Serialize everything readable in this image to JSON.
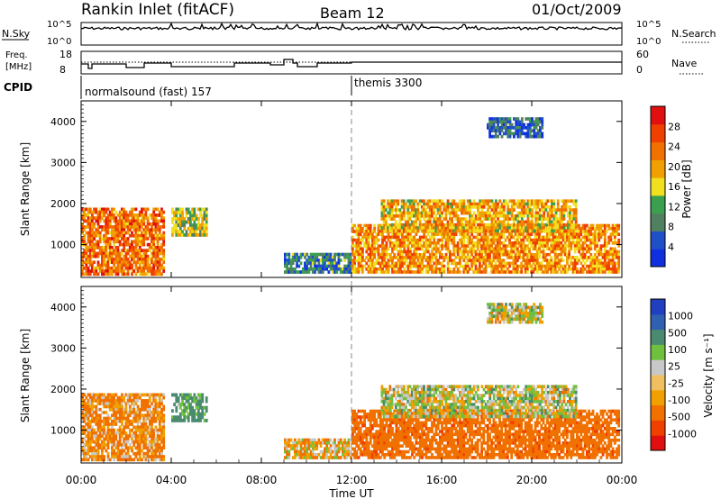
{
  "header": {
    "title": "Rankin Inlet (fitACF)",
    "beam": "Beam 12",
    "date": "01/Oct/2009"
  },
  "noise_panel": {
    "left_label": "N.Sky",
    "left_ticks": [
      "10^5",
      "10^0"
    ],
    "right_label": "N.Search",
    "right_ticks": [
      "10^5",
      "10^0"
    ]
  },
  "freq_panel": {
    "left_label_line1": "Freq.",
    "left_label_line2": "[MHz]",
    "left_ticks": [
      "18",
      "8"
    ],
    "right_label": "Nave",
    "right_ticks": [
      "60",
      "0"
    ]
  },
  "cpid": {
    "label": "CPID",
    "segments": [
      {
        "name": "normalsound (fast) 157",
        "start_hour": 0,
        "end_hour": 12
      },
      {
        "name": "themis 3300",
        "start_hour": 12,
        "end_hour": 24
      }
    ]
  },
  "colors": {
    "power_scale": [
      "#1030e0",
      "#2050c8",
      "#508060",
      "#3aa050",
      "#f0e020",
      "#f0a000",
      "#f07000",
      "#f04000",
      "#e01010"
    ],
    "velocity_scale": [
      "#e01010",
      "#f04000",
      "#f07000",
      "#f0a000",
      "#f0c060",
      "#c8c8c8",
      "#70c040",
      "#4a8a70",
      "#3060b0",
      "#2040c0"
    ],
    "dashed_marker": "#888888"
  },
  "chart_data": [
    {
      "type": "heatmap",
      "title": "",
      "xlabel": "",
      "ylabel": "Slant Range [km]",
      "xlim_hours": [
        0,
        24
      ],
      "ylim": [
        200,
        4500
      ],
      "yticks": [
        "1000",
        "2000",
        "3000",
        "4000"
      ],
      "colorbar": {
        "label": "Power [dB]",
        "ticks": [
          "4",
          "8",
          "12",
          "16",
          "20",
          "24",
          "28"
        ],
        "range": [
          0,
          30
        ]
      },
      "echo_regions": [
        {
          "t_start": 0.0,
          "t_end": 3.7,
          "r_min": 250,
          "r_max": 1900,
          "power_db": 22
        },
        {
          "t_start": 4.0,
          "t_end": 5.6,
          "r_min": 1200,
          "r_max": 1900,
          "power_db": 14
        },
        {
          "t_start": 9.0,
          "t_end": 12.0,
          "r_min": 300,
          "r_max": 800,
          "power_db": 8
        },
        {
          "t_start": 12.0,
          "t_end": 23.9,
          "r_min": 300,
          "r_max": 1500,
          "power_db": 20
        },
        {
          "t_start": 13.3,
          "t_end": 22.0,
          "r_min": 1300,
          "r_max": 2100,
          "power_db": 18
        },
        {
          "t_start": 18.0,
          "t_end": 20.5,
          "r_min": 3600,
          "r_max": 4100,
          "power_db": 6
        }
      ]
    },
    {
      "type": "heatmap",
      "title": "",
      "xlabel": "Time UT",
      "ylabel": "Slant Range [km]",
      "xlim_hours": [
        0,
        24
      ],
      "xticks": [
        "00:00",
        "04:00",
        "08:00",
        "12:00",
        "16:00",
        "20:00",
        "00:00"
      ],
      "ylim": [
        200,
        4500
      ],
      "yticks": [
        "1000",
        "2000",
        "3000",
        "4000"
      ],
      "colorbar": {
        "label": "Velocity [m s⁻¹]",
        "ticks": [
          "1000",
          "500",
          "100",
          "25",
          "-25",
          "-100",
          "-500",
          "-1000"
        ]
      },
      "echo_regions": [
        {
          "t_start": 0.0,
          "t_end": 3.7,
          "r_min": 250,
          "r_max": 1900,
          "velocity": -120
        },
        {
          "t_start": 4.0,
          "t_end": 5.6,
          "r_min": 1200,
          "r_max": 1900,
          "velocity": 150
        },
        {
          "t_start": 9.0,
          "t_end": 12.0,
          "r_min": 300,
          "r_max": 800,
          "velocity": -60
        },
        {
          "t_start": 12.0,
          "t_end": 23.9,
          "r_min": 300,
          "r_max": 1500,
          "velocity": -400
        },
        {
          "t_start": 13.3,
          "t_end": 22.0,
          "r_min": 1300,
          "r_max": 2100,
          "velocity": 0
        },
        {
          "t_start": 18.0,
          "t_end": 20.5,
          "r_min": 3600,
          "r_max": 4100,
          "velocity": 0
        }
      ]
    }
  ]
}
